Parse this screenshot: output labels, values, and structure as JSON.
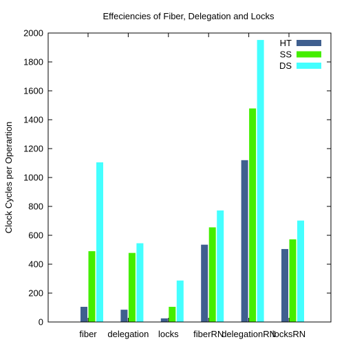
{
  "chart_data": {
    "type": "bar",
    "title": "Effeciencies of Fiber, Delegation and Locks",
    "xlabel": "",
    "ylabel": "Clock Cycles per Operartion",
    "ylim": [
      0,
      2000
    ],
    "yticks": [
      0,
      200,
      400,
      600,
      800,
      1000,
      1200,
      1400,
      1600,
      1800,
      2000
    ],
    "categories": [
      "fiber",
      "delegation",
      "locks",
      "fiberRN",
      "delegationRN",
      "locksRN"
    ],
    "series": [
      {
        "name": "HT",
        "color": "#3f5f8f",
        "values": [
          105,
          85,
          25,
          535,
          1120,
          505
        ]
      },
      {
        "name": "SS",
        "color": "#44ee00",
        "values": [
          490,
          478,
          105,
          655,
          1478,
          572
        ]
      },
      {
        "name": "DS",
        "color": "#44ffff",
        "values": [
          1105,
          545,
          287,
          772,
          1952,
          702
        ]
      }
    ],
    "legend_position": "top-right",
    "grid": false
  }
}
